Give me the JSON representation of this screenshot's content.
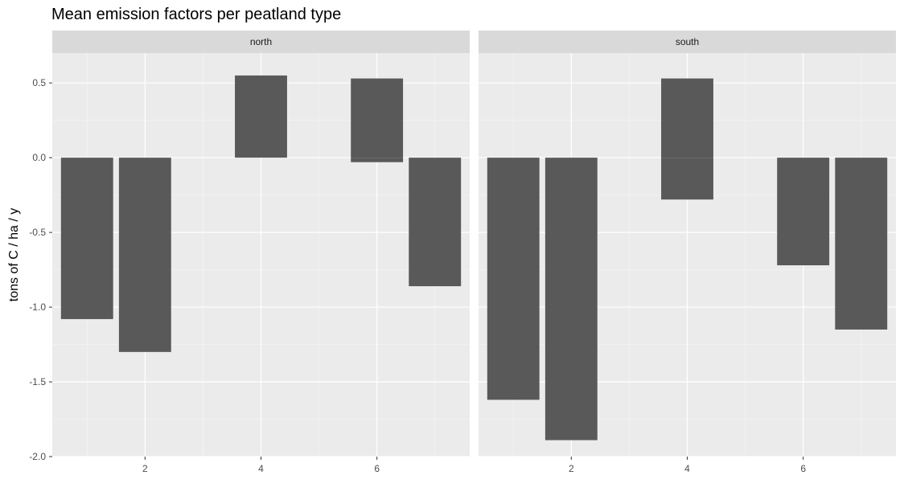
{
  "chart_data": {
    "type": "bar",
    "title": "Mean emission factors per peatland type",
    "xlabel": "",
    "ylabel": "tons of C / ha / y",
    "facets": [
      {
        "label": "north",
        "bars": [
          {
            "x": 1,
            "y": -1.08
          },
          {
            "x": 2,
            "y": -1.3
          },
          {
            "x": 4,
            "y": 0.55
          },
          {
            "x": 6,
            "y": 0.53
          },
          {
            "x": 6,
            "y": -0.03
          },
          {
            "x": 7,
            "y": -0.86
          }
        ]
      },
      {
        "label": "south",
        "bars": [
          {
            "x": 1,
            "y": -1.62
          },
          {
            "x": 2,
            "y": -1.89
          },
          {
            "x": 4,
            "y": 0.53
          },
          {
            "x": 4,
            "y": -0.28
          },
          {
            "x": 6,
            "y": -0.72
          },
          {
            "x": 7,
            "y": -1.15
          }
        ]
      }
    ],
    "xlim": [
      0.4,
      7.6
    ],
    "ylim": [
      -2.0,
      0.7
    ],
    "x_ticks": [
      2,
      4,
      6
    ],
    "y_ticks": [
      -2.0,
      -1.5,
      -1.0,
      -0.5,
      0.0,
      0.5
    ],
    "y_tick_labels": [
      "-2.0",
      "-1.5",
      "-1.0",
      "-0.5",
      "0.0",
      "0.5"
    ],
    "bar_color": "#595959",
    "panel_bg": "#ebebeb",
    "strip_bg": "#d9d9d9",
    "grid": true
  }
}
